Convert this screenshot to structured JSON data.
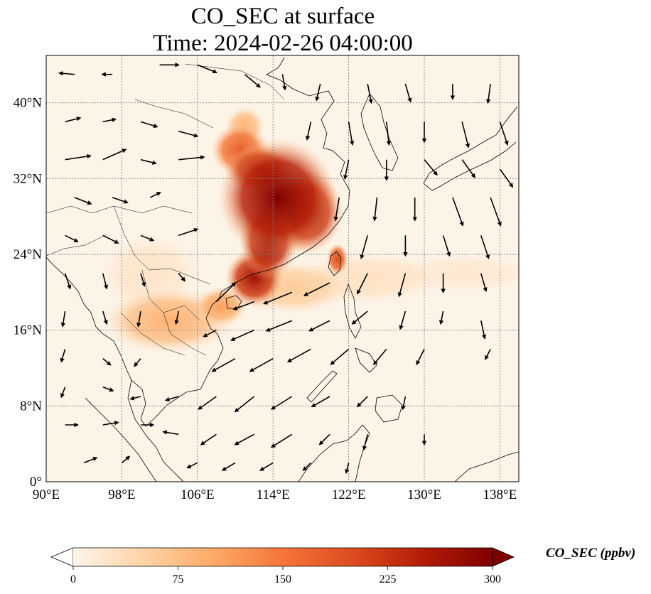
{
  "title": {
    "line1": "CO_SEC at surface",
    "line2": "Time: 2024-02-26 04:00:00"
  },
  "map": {
    "extent": {
      "lon": [
        90,
        140
      ],
      "lat": [
        0,
        45
      ]
    },
    "lon_ticks": [
      {
        "value": 90,
        "label": "90°E"
      },
      {
        "value": 98,
        "label": "98°E"
      },
      {
        "value": 106,
        "label": "106°E"
      },
      {
        "value": 114,
        "label": "114°E"
      },
      {
        "value": 122,
        "label": "122°E"
      },
      {
        "value": 130,
        "label": "130°E"
      },
      {
        "value": 138,
        "label": "138°E"
      }
    ],
    "lat_ticks": [
      {
        "value": 0,
        "label": "0°"
      },
      {
        "value": 8,
        "label": "8°N"
      },
      {
        "value": 16,
        "label": "16°N"
      },
      {
        "value": 24,
        "label": "24°N"
      },
      {
        "value": 32,
        "label": "32°N"
      },
      {
        "value": 40,
        "label": "40°N"
      }
    ],
    "gridlines": true,
    "field": "CO_SEC",
    "plumes": [
      {
        "lon": 114.5,
        "lat": 30.0,
        "level": 300,
        "rlon": 4.5,
        "rlat": 4.5
      },
      {
        "lon": 117.5,
        "lat": 28.5,
        "level": 280,
        "rlon": 2.8,
        "rlat": 3.2
      },
      {
        "lon": 112.5,
        "lat": 33.0,
        "level": 260,
        "rlon": 2.6,
        "rlat": 1.8
      },
      {
        "lon": 113.5,
        "lat": 25.5,
        "level": 290,
        "rlon": 2.2,
        "rlat": 3.0
      },
      {
        "lon": 112.0,
        "lat": 21.5,
        "level": 270,
        "rlon": 2.2,
        "rlat": 2.2
      },
      {
        "lon": 110.5,
        "lat": 35.0,
        "level": 180,
        "rlon": 2.2,
        "rlat": 2.0
      },
      {
        "lon": 111.0,
        "lat": 37.5,
        "level": 90,
        "rlon": 1.5,
        "rlat": 1.5
      },
      {
        "lon": 120.8,
        "lat": 23.5,
        "level": 200,
        "rlon": 0.8,
        "rlat": 1.2
      },
      {
        "lon": 103.0,
        "lat": 17.0,
        "level": 90,
        "rlon": 5.0,
        "rlat": 2.5
      },
      {
        "lon": 116.0,
        "lat": 20.5,
        "level": 60,
        "rlon": 4.5,
        "rlat": 2.0
      },
      {
        "lon": 124.0,
        "lat": 21.5,
        "level": 30,
        "rlon": 6.0,
        "rlat": 2.0
      },
      {
        "lon": 134.0,
        "lat": 22.0,
        "level": 20,
        "rlon": 6.0,
        "rlat": 1.5
      },
      {
        "lon": 108.5,
        "lat": 18.5,
        "level": 110,
        "rlon": 2.0,
        "rlat": 1.5
      },
      {
        "lon": 101.0,
        "lat": 22.0,
        "level": 25,
        "rlon": 4.0,
        "rlat": 3.0
      }
    ],
    "wind_vectors": [
      {
        "lon": 93,
        "lat": 43,
        "u": -1.2,
        "v": 0.1
      },
      {
        "lon": 97,
        "lat": 43,
        "u": -0.8,
        "v": 0.0
      },
      {
        "lon": 102,
        "lat": 44,
        "u": 1.5,
        "v": 0.0
      },
      {
        "lon": 106,
        "lat": 44,
        "u": 1.5,
        "v": -0.6
      },
      {
        "lon": 111,
        "lat": 43,
        "u": 1.2,
        "v": -1.0
      },
      {
        "lon": 115,
        "lat": 43,
        "u": 0.2,
        "v": -1.2
      },
      {
        "lon": 119,
        "lat": 42,
        "u": -0.3,
        "v": -1.3
      },
      {
        "lon": 124,
        "lat": 42,
        "u": 0.3,
        "v": -1.5
      },
      {
        "lon": 128,
        "lat": 42,
        "u": 0.4,
        "v": -1.4
      },
      {
        "lon": 133,
        "lat": 42,
        "u": 0.0,
        "v": -1.2
      },
      {
        "lon": 137,
        "lat": 42,
        "u": -0.2,
        "v": -1.5
      },
      {
        "lon": 92,
        "lat": 38,
        "u": 1.2,
        "v": 0.3
      },
      {
        "lon": 96,
        "lat": 38,
        "u": 1.0,
        "v": 0.2
      },
      {
        "lon": 100,
        "lat": 38,
        "u": 1.3,
        "v": -0.4
      },
      {
        "lon": 104,
        "lat": 37,
        "u": 1.5,
        "v": -0.4
      },
      {
        "lon": 118,
        "lat": 38,
        "u": -0.3,
        "v": -1.4
      },
      {
        "lon": 122,
        "lat": 38,
        "u": 0.3,
        "v": -1.8
      },
      {
        "lon": 126,
        "lat": 38,
        "u": 0.2,
        "v": -1.8
      },
      {
        "lon": 130,
        "lat": 38,
        "u": 0.0,
        "v": -1.6
      },
      {
        "lon": 134,
        "lat": 38,
        "u": 0.5,
        "v": -2.0
      },
      {
        "lon": 138,
        "lat": 38,
        "u": 0.6,
        "v": -1.8
      },
      {
        "lon": 92,
        "lat": 34,
        "u": 2.0,
        "v": 0.3
      },
      {
        "lon": 96,
        "lat": 34,
        "u": 1.8,
        "v": 0.8
      },
      {
        "lon": 100,
        "lat": 34,
        "u": 1.2,
        "v": -0.3
      },
      {
        "lon": 104,
        "lat": 34,
        "u": 2.0,
        "v": 0.2
      },
      {
        "lon": 122,
        "lat": 34,
        "u": -0.3,
        "v": -1.5
      },
      {
        "lon": 126,
        "lat": 34,
        "u": 0.0,
        "v": -1.6
      },
      {
        "lon": 130,
        "lat": 34,
        "u": 1.0,
        "v": -1.2
      },
      {
        "lon": 134,
        "lat": 34,
        "u": 1.0,
        "v": -1.4
      },
      {
        "lon": 138,
        "lat": 33,
        "u": 1.0,
        "v": -1.4
      },
      {
        "lon": 93,
        "lat": 30,
        "u": 1.3,
        "v": -0.5
      },
      {
        "lon": 97,
        "lat": 30,
        "u": 1.2,
        "v": -0.4
      },
      {
        "lon": 101,
        "lat": 30,
        "u": 0.8,
        "v": 0.4
      },
      {
        "lon": 121,
        "lat": 30,
        "u": -0.3,
        "v": -1.8
      },
      {
        "lon": 125,
        "lat": 30,
        "u": -0.2,
        "v": -1.8
      },
      {
        "lon": 129,
        "lat": 30,
        "u": 0.0,
        "v": -1.8
      },
      {
        "lon": 133,
        "lat": 30,
        "u": 0.8,
        "v": -2.2
      },
      {
        "lon": 137,
        "lat": 30,
        "u": 0.8,
        "v": -2.2
      },
      {
        "lon": 92,
        "lat": 26,
        "u": 1.0,
        "v": -0.5
      },
      {
        "lon": 96,
        "lat": 26,
        "u": 1.2,
        "v": -0.6
      },
      {
        "lon": 100,
        "lat": 26,
        "u": 1.0,
        "v": -0.4
      },
      {
        "lon": 104,
        "lat": 26,
        "u": 1.5,
        "v": 0.5
      },
      {
        "lon": 124,
        "lat": 26,
        "u": -0.5,
        "v": -1.8
      },
      {
        "lon": 128,
        "lat": 26,
        "u": 0.0,
        "v": -1.6
      },
      {
        "lon": 132,
        "lat": 26,
        "u": 0.5,
        "v": -1.6
      },
      {
        "lon": 136,
        "lat": 26,
        "u": 0.6,
        "v": -1.8
      },
      {
        "lon": 92,
        "lat": 22,
        "u": 0.4,
        "v": -1.2
      },
      {
        "lon": 96,
        "lat": 22,
        "u": 0.3,
        "v": -1.2
      },
      {
        "lon": 100,
        "lat": 22,
        "u": 0.3,
        "v": -1.0
      },
      {
        "lon": 104,
        "lat": 22,
        "u": 0.5,
        "v": -0.6
      },
      {
        "lon": 108,
        "lat": 19,
        "u": 1.5,
        "v": 1.5
      },
      {
        "lon": 112,
        "lat": 19,
        "u": -1.6,
        "v": -0.6
      },
      {
        "lon": 116,
        "lat": 20,
        "u": -2.2,
        "v": -0.9
      },
      {
        "lon": 120,
        "lat": 21,
        "u": -2.0,
        "v": -1.0
      },
      {
        "lon": 124,
        "lat": 22,
        "u": -0.8,
        "v": -1.6
      },
      {
        "lon": 128,
        "lat": 22,
        "u": -0.5,
        "v": -1.8
      },
      {
        "lon": 132,
        "lat": 22,
        "u": 0.0,
        "v": -1.5
      },
      {
        "lon": 136,
        "lat": 22,
        "u": 0.4,
        "v": -1.4
      },
      {
        "lon": 92,
        "lat": 18,
        "u": -0.2,
        "v": -1.2
      },
      {
        "lon": 96,
        "lat": 18,
        "u": 0.3,
        "v": -1.0
      },
      {
        "lon": 100,
        "lat": 18,
        "u": -0.2,
        "v": -1.2
      },
      {
        "lon": 104,
        "lat": 18,
        "u": -0.2,
        "v": -1.0
      },
      {
        "lon": 108,
        "lat": 16,
        "u": -1.0,
        "v": -0.5
      },
      {
        "lon": 112,
        "lat": 16,
        "u": -1.8,
        "v": -0.8
      },
      {
        "lon": 116,
        "lat": 17,
        "u": -2.0,
        "v": -0.8
      },
      {
        "lon": 120,
        "lat": 17,
        "u": -1.6,
        "v": -0.8
      },
      {
        "lon": 124,
        "lat": 18,
        "u": -1.2,
        "v": -1.0
      },
      {
        "lon": 128,
        "lat": 18,
        "u": -0.4,
        "v": -1.4
      },
      {
        "lon": 132,
        "lat": 18,
        "u": -0.2,
        "v": -1.0
      },
      {
        "lon": 136,
        "lat": 17,
        "u": 0.3,
        "v": -1.4
      },
      {
        "lon": 92,
        "lat": 14,
        "u": -0.3,
        "v": -1.0
      },
      {
        "lon": 96,
        "lat": 13,
        "u": 0.6,
        "v": -0.5
      },
      {
        "lon": 100,
        "lat": 13,
        "u": -0.5,
        "v": -0.6
      },
      {
        "lon": 110,
        "lat": 13,
        "u": -1.8,
        "v": -1.0
      },
      {
        "lon": 114,
        "lat": 13,
        "u": -1.8,
        "v": -1.0
      },
      {
        "lon": 118,
        "lat": 14,
        "u": -1.8,
        "v": -1.0
      },
      {
        "lon": 122,
        "lat": 14,
        "u": -1.4,
        "v": -1.2
      },
      {
        "lon": 126,
        "lat": 14,
        "u": -1.0,
        "v": -1.2
      },
      {
        "lon": 130,
        "lat": 14,
        "u": -0.6,
        "v": -1.2
      },
      {
        "lon": 137,
        "lat": 14,
        "u": -0.4,
        "v": -0.8
      },
      {
        "lon": 92,
        "lat": 10,
        "u": -0.3,
        "v": -0.8
      },
      {
        "lon": 96,
        "lat": 10,
        "u": 0.8,
        "v": -0.3
      },
      {
        "lon": 100,
        "lat": 9,
        "u": -0.8,
        "v": -0.2
      },
      {
        "lon": 104,
        "lat": 9,
        "u": -1.0,
        "v": -0.3
      },
      {
        "lon": 108,
        "lat": 9,
        "u": -1.4,
        "v": -1.0
      },
      {
        "lon": 112,
        "lat": 9,
        "u": -1.5,
        "v": -1.2
      },
      {
        "lon": 116,
        "lat": 9,
        "u": -1.6,
        "v": -1.0
      },
      {
        "lon": 120,
        "lat": 9,
        "u": -1.4,
        "v": -0.8
      },
      {
        "lon": 124,
        "lat": 9,
        "u": -0.8,
        "v": -0.8
      },
      {
        "lon": 128,
        "lat": 9,
        "u": -0.2,
        "v": -1.0
      },
      {
        "lon": 92,
        "lat": 6,
        "u": 1.0,
        "v": 0.0
      },
      {
        "lon": 96,
        "lat": 6,
        "u": 1.2,
        "v": 0.2
      },
      {
        "lon": 100,
        "lat": 6,
        "u": 1.0,
        "v": 0.0
      },
      {
        "lon": 104,
        "lat": 5,
        "u": -1.2,
        "v": 0.2
      },
      {
        "lon": 108,
        "lat": 5,
        "u": -1.2,
        "v": -0.8
      },
      {
        "lon": 112,
        "lat": 5,
        "u": -1.5,
        "v": -0.8
      },
      {
        "lon": 116,
        "lat": 5,
        "u": -1.6,
        "v": -1.0
      },
      {
        "lon": 120,
        "lat": 5,
        "u": -0.8,
        "v": -0.8
      },
      {
        "lon": 124,
        "lat": 5,
        "u": -0.3,
        "v": -1.2
      },
      {
        "lon": 130,
        "lat": 5,
        "u": 0.0,
        "v": -0.8
      },
      {
        "lon": 94,
        "lat": 2,
        "u": 1.0,
        "v": 0.4
      },
      {
        "lon": 98,
        "lat": 2,
        "u": 0.6,
        "v": 0.5
      },
      {
        "lon": 106,
        "lat": 2,
        "u": -0.8,
        "v": -0.4
      },
      {
        "lon": 110,
        "lat": 2,
        "u": -1.0,
        "v": -0.6
      },
      {
        "lon": 114,
        "lat": 2,
        "u": -1.0,
        "v": -0.6
      },
      {
        "lon": 118,
        "lat": 2,
        "u": -0.6,
        "v": -0.6
      },
      {
        "lon": 122,
        "lat": 2,
        "u": -0.2,
        "v": -0.8
      }
    ]
  },
  "colorbar": {
    "label": "CO_SEC (ppbv)",
    "min": 0,
    "max": 300,
    "ticks": [
      {
        "value": 0,
        "label": "0"
      },
      {
        "value": 75,
        "label": "75"
      },
      {
        "value": 150,
        "label": "150"
      },
      {
        "value": 225,
        "label": "225"
      },
      {
        "value": 300,
        "label": "300"
      }
    ],
    "colors": [
      "#fff5eb",
      "#fdd3a6",
      "#fdaa66",
      "#f5753b",
      "#dc4c1e",
      "#b21d07",
      "#7f0000"
    ],
    "extend": "both",
    "under_color": "#ffffff",
    "over_color": "#7f0000"
  },
  "style": {
    "background_color": "#fdf4e8",
    "coast_color": "#000000",
    "grid_color": "#808080",
    "arrow_color": "#000000"
  }
}
